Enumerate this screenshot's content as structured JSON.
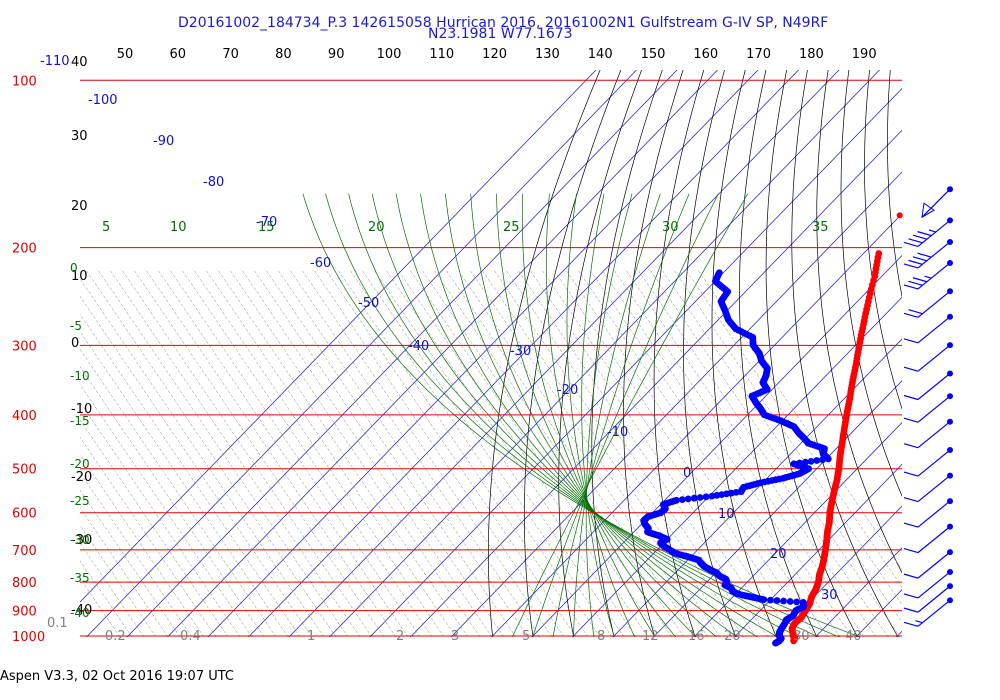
{
  "header": {
    "line1": "D20161002_184734_P.3 142615058 Hurrican 2016, 20161002N1 Gulfstream G-IV SP, N49RF",
    "line2": "N23.1981 W77.1673"
  },
  "footer": "Aspen V3.3, 02 Oct 2016  19:07 UTC",
  "colors": {
    "isobar": "#e00000",
    "isotherm": "#1010d0",
    "mixing_ratio": "#808080",
    "dry_adiabat": "#000000",
    "moist_adiabat": "#007000",
    "temperature": "#ff0000",
    "dewpoint": "#0000ff",
    "wind_barb": "#0000ff"
  },
  "chart_data": {
    "type": "scatter",
    "subtype": "skew-T log-P sounding",
    "pressure_levels_hPa": [
      "100",
      "200",
      "300",
      "400",
      "500",
      "600",
      "700",
      "800",
      "900",
      "1000"
    ],
    "top_axis_labels": [
      "50",
      "60",
      "70",
      "80",
      "90",
      "100",
      "110",
      "120",
      "130",
      "140",
      "150",
      "160",
      "170",
      "180",
      "190"
    ],
    "top_left_label": "-110",
    "dry_adiabat_labels": [
      "40",
      "30",
      "20",
      "10",
      "0",
      "-10",
      "-20",
      "-30",
      "-40"
    ],
    "isotherm_labels": [
      "-100",
      "-90",
      "-80",
      "-70",
      "-60",
      "-50",
      "-40",
      "-30",
      "-20",
      "-10",
      "0",
      "10",
      "20",
      "30"
    ],
    "moist_adiabat_labels_top": [
      "5",
      "10",
      "15",
      "20",
      "25",
      "30",
      "35"
    ],
    "moist_adiabat_labels_left": [
      "0",
      "-5",
      "-10",
      "-15",
      "-20",
      "-25",
      "-30",
      "-35",
      "-40"
    ],
    "mixing_ratio_labels": [
      "0.1",
      "0.2",
      "0.4",
      "1",
      "2",
      "3",
      "5",
      "8",
      "12",
      "16",
      "20",
      "30",
      "40"
    ],
    "series": [
      {
        "name": "Temperature",
        "points": [
          [
            1020,
            25.5
          ],
          [
            1010,
            25.2
          ],
          [
            1000,
            24.3
          ],
          [
            985,
            23.3
          ],
          [
            970,
            22.2
          ],
          [
            950,
            21.6
          ],
          [
            925,
            21.8
          ],
          [
            900,
            21.2
          ],
          [
            875,
            20.6
          ],
          [
            850,
            19.4
          ],
          [
            825,
            18.7
          ],
          [
            800,
            17.6
          ],
          [
            775,
            16.0
          ],
          [
            750,
            14.8
          ],
          [
            725,
            13.3
          ],
          [
            700,
            11.6
          ],
          [
            675,
            9.8
          ],
          [
            650,
            7.8
          ],
          [
            625,
            6.0
          ],
          [
            600,
            3.8
          ],
          [
            575,
            1.8
          ],
          [
            550,
            -0.2
          ],
          [
            525,
            -2.2
          ],
          [
            500,
            -4.5
          ],
          [
            475,
            -7.2
          ],
          [
            450,
            -9.8
          ],
          [
            425,
            -12.6
          ],
          [
            400,
            -15.5
          ],
          [
            375,
            -18.5
          ],
          [
            350,
            -21.8
          ],
          [
            325,
            -25.2
          ],
          [
            300,
            -29.0
          ],
          [
            275,
            -33.0
          ],
          [
            250,
            -37.3
          ],
          [
            225,
            -41.8
          ],
          [
            205,
            -46.2
          ]
        ]
      },
      {
        "name": "Dewpoint",
        "points": [
          [
            1030,
            21.6
          ],
          [
            1020,
            22.0
          ],
          [
            1010,
            21.9
          ],
          [
            1000,
            20.8
          ],
          [
            985,
            20.0
          ],
          [
            970,
            19.6
          ],
          [
            950,
            19.2
          ],
          [
            935,
            18.7
          ],
          [
            920,
            19.4
          ],
          [
            900,
            18.8
          ],
          [
            885,
            19.8
          ],
          [
            870,
            18.7
          ],
          [
            860,
            8.3
          ],
          [
            850,
            4.3
          ],
          [
            840,
            0.4
          ],
          [
            830,
            -1.5
          ],
          [
            820,
            -2.5
          ],
          [
            810,
            -4.8
          ],
          [
            800,
            -5.0
          ],
          [
            790,
            -6.0
          ],
          [
            780,
            -8.3
          ],
          [
            770,
            -9.7
          ],
          [
            760,
            -12.1
          ],
          [
            750,
            -14.3
          ],
          [
            740,
            -15.9
          ],
          [
            730,
            -17.3
          ],
          [
            720,
            -20.7
          ],
          [
            710,
            -24.7
          ],
          [
            700,
            -26.8
          ],
          [
            690,
            -29.1
          ],
          [
            680,
            -30.8
          ],
          [
            670,
            -30.0
          ],
          [
            660,
            -32.9
          ],
          [
            650,
            -36.6
          ],
          [
            640,
            -37.3
          ],
          [
            630,
            -39.0
          ],
          [
            620,
            -40.3
          ],
          [
            610,
            -40.2
          ],
          [
            600,
            -38.0
          ],
          [
            590,
            -37.8
          ],
          [
            580,
            -39.3
          ],
          [
            570,
            -37.1
          ],
          [
            560,
            -29.3
          ],
          [
            550,
            -23.2
          ],
          [
            540,
            -23.6
          ],
          [
            530,
            -20.5
          ],
          [
            520,
            -16.0
          ],
          [
            510,
            -13.0
          ],
          [
            500,
            -12.0
          ],
          [
            490,
            -16.8
          ],
          [
            480,
            -9.5
          ],
          [
            470,
            -12.0
          ],
          [
            460,
            -12.9
          ],
          [
            450,
            -18.1
          ],
          [
            440,
            -20.6
          ],
          [
            430,
            -23.3
          ],
          [
            420,
            -25.7
          ],
          [
            410,
            -30.3
          ],
          [
            400,
            -35.8
          ],
          [
            390,
            -38.2
          ],
          [
            380,
            -40.9
          ],
          [
            370,
            -43.4
          ],
          [
            360,
            -41.2
          ],
          [
            350,
            -43.9
          ],
          [
            340,
            -44.8
          ],
          [
            330,
            -46.2
          ],
          [
            320,
            -49.4
          ],
          [
            310,
            -51.8
          ],
          [
            300,
            -55.2
          ],
          [
            290,
            -57.3
          ],
          [
            280,
            -63.5
          ],
          [
            270,
            -67.4
          ],
          [
            260,
            -70.4
          ],
          [
            250,
            -73.7
          ],
          [
            240,
            -74.4
          ],
          [
            230,
            -79.9
          ],
          [
            222,
            -81.0
          ]
        ]
      },
      {
        "name": "Flight-level point",
        "points": [
          [
            175,
            -50.2
          ]
        ]
      }
    ],
    "wind_barbs": [
      {
        "y_frac": 0.205,
        "kind": "pennant"
      },
      {
        "y_frac": 0.26,
        "barbs": 4.5
      },
      {
        "y_frac": 0.298,
        "barbs": 4
      },
      {
        "y_frac": 0.335,
        "barbs": 3.5
      },
      {
        "y_frac": 0.385,
        "barbs": 2
      },
      {
        "y_frac": 0.43,
        "barbs": 1
      },
      {
        "y_frac": 0.48,
        "barbs": 1
      },
      {
        "y_frac": 0.53,
        "barbs": 1
      },
      {
        "y_frac": 0.57,
        "barbs": 1
      },
      {
        "y_frac": 0.615,
        "barbs": 1
      },
      {
        "y_frac": 0.665,
        "barbs": 1
      },
      {
        "y_frac": 0.71,
        "barbs": 1
      },
      {
        "y_frac": 0.755,
        "barbs": 1
      },
      {
        "y_frac": 0.8,
        "barbs": 1
      },
      {
        "y_frac": 0.845,
        "barbs": 1
      },
      {
        "y_frac": 0.88,
        "barbs": 1
      },
      {
        "y_frac": 0.905,
        "barbs": 1
      },
      {
        "y_frac": 0.93,
        "barbs": 1.5
      }
    ],
    "grid": true
  }
}
